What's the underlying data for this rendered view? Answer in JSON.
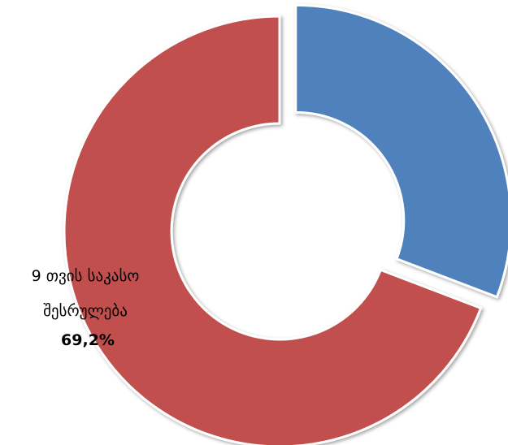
{
  "chart_data": {
    "type": "pie",
    "variant": "doughnut",
    "slices": [
      {
        "label": "9 თვის საკასო შესრულება 69,2%",
        "value": 69.2,
        "color": "#c0504d"
      },
      {
        "label": "",
        "value": 30.8,
        "color": "#4f81bd"
      }
    ],
    "data_labels": [
      {
        "lines": [
          "9 თვის საკასო",
          "შესრულება",
          "69,2%"
        ]
      }
    ],
    "legend": "none"
  }
}
